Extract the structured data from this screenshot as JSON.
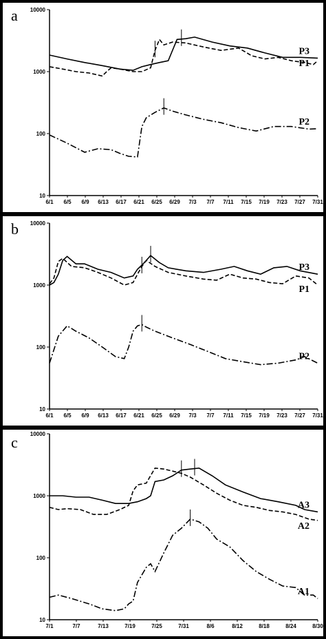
{
  "chart_data": [
    {
      "panel": "a",
      "type": "line",
      "yscale": "log",
      "ylim": [
        10,
        10000
      ],
      "yticks": [
        "10000",
        "1000",
        "100",
        "10"
      ],
      "x_tick_labels": [
        "6/1",
        "6/5",
        "6/9",
        "6/13",
        "6/17",
        "6/21",
        "6/25",
        "6/29",
        "7/3",
        "7/7",
        "7/11",
        "7/15",
        "7/19",
        "7/23",
        "7/27",
        "7/31"
      ],
      "series": [
        {
          "name": "P3",
          "dash": "solid",
          "x": [
            0,
            4,
            8,
            12,
            16,
            19,
            21,
            23,
            25,
            27,
            29,
            31,
            33,
            37,
            41,
            45,
            49,
            53,
            57,
            61
          ],
          "values": [
            1850,
            1600,
            1400,
            1250,
            1100,
            1050,
            1200,
            1300,
            1400,
            1500,
            3300,
            3400,
            3600,
            3000,
            2600,
            2400,
            2000,
            1700,
            1700,
            1650
          ],
          "peaks": [
            30
          ]
        },
        {
          "name": "P1",
          "dash": "dashed",
          "x": [
            0,
            3,
            6,
            9,
            12,
            13,
            14,
            16,
            19,
            21,
            23,
            24,
            25,
            26,
            28,
            31,
            35,
            39,
            43,
            46,
            49,
            52,
            55,
            58,
            60,
            61
          ],
          "values": [
            1200,
            1100,
            1000,
            950,
            850,
            1000,
            1150,
            1100,
            1000,
            1000,
            1150,
            2200,
            3300,
            2700,
            3000,
            2900,
            2500,
            2200,
            2400,
            1800,
            1600,
            1700,
            1500,
            1400,
            1300,
            1500
          ],
          "peaks": [
            24
          ]
        },
        {
          "name": "P2",
          "dash": "dashdot",
          "x": [
            0,
            4,
            8,
            11,
            14,
            16,
            18,
            20,
            21,
            22,
            24,
            26,
            28,
            31,
            35,
            39,
            43,
            47,
            51,
            55,
            59,
            61
          ],
          "values": [
            95,
            70,
            50,
            57,
            55,
            48,
            43,
            42,
            130,
            180,
            220,
            260,
            230,
            200,
            170,
            150,
            125,
            110,
            130,
            130,
            118,
            120
          ],
          "peaks": [
            26
          ]
        }
      ]
    },
    {
      "panel": "b",
      "type": "line",
      "yscale": "log",
      "ylim": [
        10,
        10000
      ],
      "yticks": [
        "10000",
        "1000",
        "100",
        "10"
      ],
      "x_tick_labels": [
        "6/1",
        "6/5",
        "6/9",
        "6/13",
        "6/17",
        "6/21",
        "6/25",
        "6/29",
        "7/3",
        "7/7",
        "7/11",
        "7/15",
        "7/19",
        "7/23",
        "7/27",
        "7/31"
      ],
      "series": [
        {
          "name": "P3",
          "dash": "solid",
          "x": [
            0,
            1,
            2,
            3,
            4,
            6,
            8,
            11,
            14,
            17,
            19,
            20,
            21,
            22,
            23,
            25,
            27,
            31,
            35,
            39,
            42,
            45,
            48,
            51,
            54,
            57,
            61
          ],
          "values": [
            1000,
            1100,
            1500,
            2500,
            2900,
            2200,
            2200,
            1800,
            1600,
            1300,
            1400,
            1800,
            2100,
            2500,
            3000,
            2300,
            1900,
            1700,
            1600,
            1800,
            2000,
            1700,
            1500,
            1900,
            2000,
            1700,
            1500
          ],
          "peaks": [
            23
          ]
        },
        {
          "name": "P1",
          "dash": "dashed",
          "x": [
            0,
            1,
            2,
            3,
            5,
            8,
            11,
            14,
            17,
            19,
            20,
            21,
            22,
            24,
            27,
            31,
            35,
            38,
            41,
            44,
            47,
            50,
            53,
            56,
            59,
            61
          ],
          "values": [
            1050,
            1300,
            2400,
            2700,
            2000,
            1900,
            1600,
            1300,
            1000,
            1100,
            1500,
            2000,
            2500,
            2000,
            1600,
            1400,
            1250,
            1200,
            1500,
            1300,
            1250,
            1100,
            1050,
            1400,
            1300,
            1000
          ],
          "peaks": [
            21
          ]
        },
        {
          "name": "P2",
          "dash": "dashdot",
          "x": [
            0,
            2,
            4,
            6,
            9,
            12,
            15,
            17,
            18,
            19,
            20,
            21,
            22,
            24,
            28,
            32,
            36,
            40,
            44,
            48,
            52,
            56,
            58,
            61
          ],
          "values": [
            55,
            150,
            220,
            180,
            140,
            100,
            70,
            65,
            100,
            180,
            220,
            230,
            210,
            180,
            140,
            110,
            85,
            65,
            58,
            52,
            55,
            62,
            70,
            55
          ],
          "peaks": [
            21
          ]
        }
      ]
    },
    {
      "panel": "c",
      "type": "line",
      "yscale": "log",
      "ylim": [
        10,
        10000
      ],
      "yticks": [
        "10000",
        "1000",
        "100",
        "10"
      ],
      "x_tick_labels": [
        "7/1",
        "7/7",
        "7/13",
        "7/19",
        "7/25",
        "7/31",
        "8/6",
        "8/12",
        "8/18",
        "8/24",
        "8/30"
      ],
      "series": [
        {
          "name": "A3",
          "dash": "solid",
          "x": [
            0,
            3,
            6,
            9,
            12,
            15,
            18,
            20,
            22,
            23,
            24,
            26,
            28,
            30,
            32,
            34,
            37,
            40,
            44,
            48,
            52,
            56,
            58,
            61
          ],
          "values": [
            1000,
            1000,
            950,
            950,
            850,
            750,
            750,
            800,
            900,
            1000,
            1700,
            1800,
            2100,
            2600,
            2700,
            2800,
            2100,
            1500,
            1150,
            900,
            800,
            700,
            600,
            550
          ],
          "peaks": [
            30,
            33
          ]
        },
        {
          "name": "A2",
          "dash": "dashed",
          "x": [
            0,
            2,
            4,
            7,
            10,
            13,
            16,
            18,
            19,
            20,
            22,
            24,
            26,
            28,
            30,
            32,
            35,
            38,
            41,
            44,
            47,
            50,
            53,
            56,
            59,
            61
          ],
          "values": [
            650,
            600,
            620,
            600,
            500,
            500,
            600,
            700,
            1200,
            1500,
            1600,
            2800,
            2700,
            2500,
            2300,
            2000,
            1500,
            1100,
            850,
            700,
            650,
            580,
            550,
            500,
            420,
            400
          ],
          "peaks": []
        },
        {
          "name": "A1",
          "dash": "dashdot",
          "x": [
            0,
            2,
            5,
            9,
            12,
            15,
            17,
            18,
            19,
            20,
            22,
            23,
            24,
            26,
            28,
            30,
            32,
            34,
            36,
            38,
            41,
            44,
            47,
            50,
            53,
            56,
            58,
            60,
            61
          ],
          "values": [
            23,
            25,
            22,
            18,
            15,
            14,
            15,
            18,
            20,
            40,
            70,
            80,
            60,
            120,
            230,
            300,
            420,
            380,
            300,
            200,
            150,
            90,
            60,
            45,
            35,
            33,
            25,
            25,
            22
          ],
          "peaks": [
            32
          ]
        }
      ]
    }
  ]
}
